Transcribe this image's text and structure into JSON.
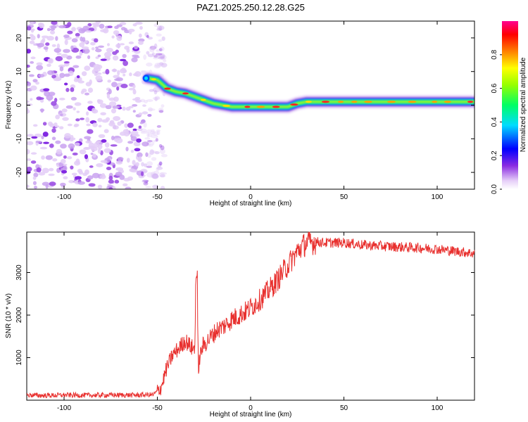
{
  "title": "PAZ1.2025.250.12.28.G25",
  "chart_data": [
    {
      "type": "heatmap",
      "xlabel": "Height of straight line (km)",
      "ylabel": "Frequency (Hz)",
      "xlim": [
        -120,
        120
      ],
      "ylim": [
        -25,
        25
      ],
      "xticks": [
        -100,
        -50,
        0,
        50,
        100
      ],
      "yticks": [
        -20,
        -10,
        0,
        10,
        20
      ],
      "noise_region_x": [
        -120,
        -52
      ],
      "signal_ridge": {
        "x": [
          -55,
          -50,
          -45,
          -40,
          -35,
          -30,
          -25,
          -20,
          -15,
          -10,
          -5,
          0,
          5,
          10,
          15,
          20,
          25,
          30,
          40,
          50,
          60,
          70,
          80,
          90,
          100,
          110,
          120
        ],
        "y": [
          8,
          7.5,
          5,
          4,
          3.5,
          2.5,
          1.5,
          0.5,
          0,
          -0.5,
          -0.5,
          -0.5,
          -0.5,
          -0.5,
          -0.5,
          -0.5,
          0.5,
          1,
          1,
          1,
          1,
          1,
          1,
          1,
          1,
          1,
          1
        ]
      },
      "colorbar": {
        "label": "Normalized spectral amplitude",
        "range": [
          0,
          1
        ],
        "ticks": [
          0.0,
          0.2,
          0.4,
          0.6,
          0.8
        ],
        "tick_labels": [
          "0.0",
          "0.2",
          "0.4",
          "0.6",
          "0.8"
        ]
      }
    },
    {
      "type": "line",
      "xlabel": "Height of straight line (km)",
      "ylabel": "SNR (10 * v/v)",
      "xlim": [
        -120,
        120
      ],
      "ylim": [
        0,
        3950
      ],
      "xticks": [
        -100,
        -50,
        0,
        50,
        100
      ],
      "yticks": [
        1000,
        2000,
        3000
      ],
      "color": "#e8302e",
      "series": [
        {
          "name": "SNR",
          "x": [
            -120,
            -110,
            -100,
            -90,
            -80,
            -70,
            -60,
            -52,
            -48,
            -45,
            -42,
            -38,
            -35,
            -32,
            -30,
            -29,
            -28,
            -26,
            -22,
            -18,
            -14,
            -10,
            -6,
            -2,
            2,
            6,
            10,
            14,
            18,
            22,
            26,
            30,
            35,
            40,
            50,
            60,
            70,
            80,
            90,
            100,
            110,
            120
          ],
          "y": [
            120,
            110,
            120,
            115,
            120,
            120,
            120,
            130,
            300,
            750,
            1050,
            1250,
            1400,
            1250,
            1200,
            2900,
            800,
            1250,
            1450,
            1650,
            1750,
            1900,
            2000,
            2100,
            2250,
            2400,
            2600,
            2800,
            3050,
            3300,
            3550,
            3700,
            3720,
            3700,
            3700,
            3650,
            3620,
            3600,
            3580,
            3550,
            3500,
            3450
          ]
        }
      ]
    }
  ]
}
